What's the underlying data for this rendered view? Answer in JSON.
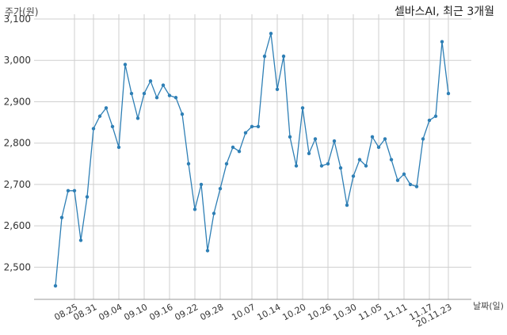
{
  "chart_data": {
    "type": "line",
    "title": "셀바스AI, 최근 3개월",
    "ylabel": "주가(원)",
    "xlabel": "날짜(일)",
    "ylim": [
      2430,
      3100
    ],
    "yticks": [
      2500,
      2600,
      2700,
      2800,
      2900,
      3000,
      3100
    ],
    "ytick_labels": [
      "2,500",
      "2,600",
      "2,700",
      "2,800",
      "2,900",
      "3,000",
      "3,100"
    ],
    "xtick_indices": [
      3,
      6,
      10,
      14,
      18,
      22,
      26,
      31,
      35,
      39,
      43,
      47,
      51,
      55,
      59
    ],
    "xtick_labels": [
      "08.25",
      "08.31",
      "09.04",
      "09.10",
      "09.16",
      "09.22",
      "09.28",
      "10.07",
      "10.14",
      "10.20",
      "10.26",
      "10.30",
      "11.05",
      "11.11",
      "11.17"
    ],
    "last_label": "20.11.23",
    "grid": true,
    "line_color": "#2e7fb5",
    "series": [
      {
        "values": [
          2455,
          2620,
          2685,
          2685,
          2565,
          2670,
          2835,
          2865,
          2885,
          2840,
          2790,
          2990,
          2920,
          2860,
          2920,
          2950,
          2910,
          2940,
          2915,
          2910,
          2870,
          2750,
          2640,
          2700,
          2540,
          2630,
          2690,
          2750,
          2790,
          2780,
          2825,
          2840,
          2840,
          3010,
          3065,
          2930,
          3010,
          2815,
          2745,
          2885,
          2775,
          2810,
          2745,
          2750,
          2805,
          2740,
          2650,
          2720,
          2760,
          2745,
          2815,
          2790,
          2810,
          2760,
          2710,
          2725,
          2700,
          2695,
          2810,
          2855,
          2865,
          3045,
          2920
        ]
      }
    ]
  }
}
